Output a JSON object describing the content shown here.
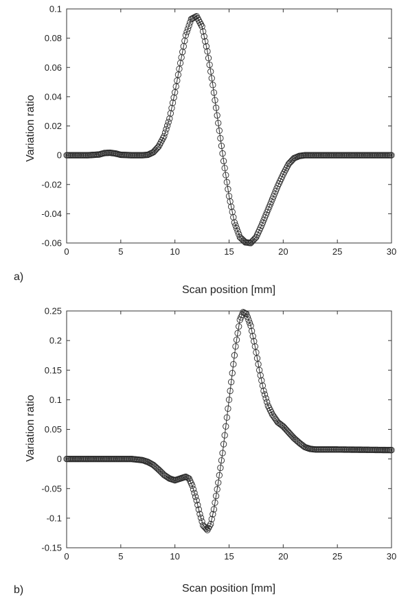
{
  "chart_data": [
    {
      "type": "scatter",
      "panel_label": "a)",
      "xlabel": "Scan position [mm]",
      "ylabel": "Variation ratio",
      "xlim": [
        0,
        30
      ],
      "ylim": [
        -0.06,
        0.1
      ],
      "xticks": [
        "0",
        "5",
        "10",
        "15",
        "20",
        "25",
        "30"
      ],
      "yticks": [
        "-0.06",
        "-0.04",
        "-0.02",
        "0",
        "0.02",
        "0.04",
        "0.06",
        "0.08",
        "0.1"
      ],
      "grid": false,
      "marker": "open-circle",
      "connected_line": true,
      "series": [
        {
          "x": [
            0,
            2,
            3,
            3.5,
            4,
            4.5,
            5,
            6,
            7,
            7.5,
            8,
            8.5,
            9,
            9.5,
            10,
            10.5,
            11,
            11.5,
            12,
            12.5,
            13,
            13.5,
            14,
            14.5,
            15,
            15.5,
            16,
            16.5,
            17,
            17.5,
            18,
            18.5,
            19,
            19.5,
            20,
            20.5,
            21,
            21.5,
            22,
            23,
            25,
            30
          ],
          "y": [
            0,
            0,
            0.0005,
            0.0015,
            0.0017,
            0.0012,
            0.0003,
            0,
            0,
            0.0003,
            0.002,
            0.006,
            0.013,
            0.025,
            0.043,
            0.063,
            0.082,
            0.093,
            0.095,
            0.088,
            0.071,
            0.048,
            0.022,
            -0.004,
            -0.028,
            -0.046,
            -0.056,
            -0.0595,
            -0.06,
            -0.056,
            -0.048,
            -0.039,
            -0.03,
            -0.021,
            -0.013,
            -0.006,
            -0.002,
            -0.0005,
            0,
            0,
            0,
            0
          ]
        }
      ]
    },
    {
      "type": "scatter",
      "panel_label": "b)",
      "xlabel": "Scan position [mm]",
      "ylabel": "Variation ratio",
      "xlim": [
        0,
        30
      ],
      "ylim": [
        -0.15,
        0.25
      ],
      "xticks": [
        "0",
        "5",
        "10",
        "15",
        "20",
        "25",
        "30"
      ],
      "yticks": [
        "-0.15",
        "-0.1",
        "-0.05",
        "0",
        "0.05",
        "0.1",
        "0.15",
        "0.2",
        "0.25"
      ],
      "grid": false,
      "marker": "open-circle",
      "connected_line": true,
      "series": [
        {
          "x": [
            0,
            5,
            6,
            7,
            7.5,
            8,
            8.5,
            9,
            9.5,
            10,
            10.5,
            11,
            11.3,
            11.6,
            12,
            12.3,
            12.6,
            13,
            13.3,
            13.6,
            14,
            14.4,
            14.8,
            15.2,
            15.6,
            16,
            16.3,
            16.6,
            17,
            17.4,
            17.8,
            18.2,
            18.6,
            19,
            19.5,
            20,
            20.5,
            21,
            21.5,
            22,
            22.5,
            23,
            23.5,
            25,
            30
          ],
          "y": [
            0,
            0,
            0,
            -0.002,
            -0.005,
            -0.01,
            -0.018,
            -0.027,
            -0.033,
            -0.036,
            -0.033,
            -0.03,
            -0.033,
            -0.045,
            -0.07,
            -0.093,
            -0.112,
            -0.12,
            -0.11,
            -0.085,
            -0.04,
            0.01,
            0.07,
            0.13,
            0.19,
            0.235,
            0.248,
            0.245,
            0.225,
            0.19,
            0.15,
            0.115,
            0.09,
            0.075,
            0.062,
            0.055,
            0.045,
            0.035,
            0.027,
            0.02,
            0.017,
            0.016,
            0.016,
            0.016,
            0.015
          ]
        }
      ]
    }
  ]
}
